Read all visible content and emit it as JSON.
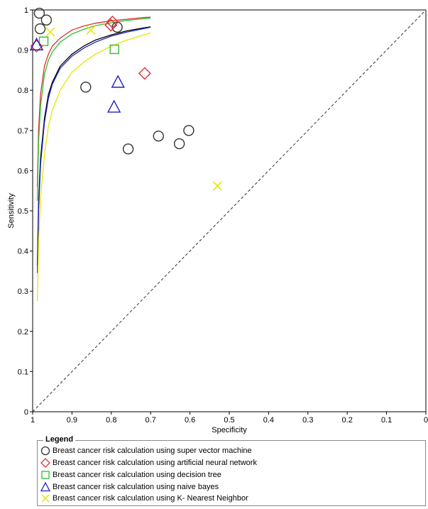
{
  "chart_data": {
    "type": "scatter",
    "xlabel": "Specificity",
    "ylabel": "Sensitivity",
    "xlim": [
      1,
      0
    ],
    "ylim": [
      0,
      1
    ],
    "x_reversed": true,
    "grid": false,
    "diagonal_reference_line": true,
    "x_ticks": [
      "1",
      "0.9",
      "0.8",
      "0.7",
      "0.6",
      "0.5",
      "0.4",
      "0.3",
      "0.2",
      "0.1",
      "0"
    ],
    "y_ticks": [
      "0",
      "0.1",
      "0.2",
      "0.3",
      "0.4",
      "0.5",
      "0.6",
      "0.7",
      "0.8",
      "0.9",
      "1"
    ],
    "legend": {
      "title": "Legend",
      "placement": "bottom",
      "entries": [
        "Breast cancer risk calculation using super vector machine",
        "Breast cancer risk calculation using artificial neural network",
        "Breast cancer risk calculation using decision tree",
        "Breast cancer risk calculation using naive bayes",
        "Breast cancer risk calculation using K- Nearest Neighbor"
      ]
    },
    "series": [
      {
        "name": "Breast cancer risk calculation using super vector machine",
        "marker": "circle",
        "color": "#333333",
        "points": [
          {
            "x": 0.983,
            "y": 0.992
          },
          {
            "x": 0.965,
            "y": 0.975
          },
          {
            "x": 0.981,
            "y": 0.953
          },
          {
            "x": 0.785,
            "y": 0.957
          },
          {
            "x": 0.865,
            "y": 0.808
          },
          {
            "x": 0.68,
            "y": 0.686
          },
          {
            "x": 0.603,
            "y": 0.7
          },
          {
            "x": 0.627,
            "y": 0.667
          },
          {
            "x": 0.757,
            "y": 0.654
          }
        ]
      },
      {
        "name": "Breast cancer risk calculation using artificial neural network",
        "marker": "diamond",
        "color": "#e03030",
        "points": [
          {
            "x": 0.99,
            "y": 0.91
          },
          {
            "x": 0.797,
            "y": 0.97
          },
          {
            "x": 0.801,
            "y": 0.962
          },
          {
            "x": 0.715,
            "y": 0.842
          }
        ]
      },
      {
        "name": "Breast cancer risk calculation using decision tree",
        "marker": "square",
        "color": "#2fbf2f",
        "points": [
          {
            "x": 0.972,
            "y": 0.922
          },
          {
            "x": 0.792,
            "y": 0.902
          }
        ]
      },
      {
        "name": "Breast cancer risk calculation using naive bayes",
        "marker": "triangle",
        "color": "#2020c0",
        "points": [
          {
            "x": 0.99,
            "y": 0.913
          },
          {
            "x": 0.783,
            "y": 0.82
          },
          {
            "x": 0.793,
            "y": 0.758
          }
        ]
      },
      {
        "name": "Breast cancer risk calculation using K- Nearest Neighbor",
        "marker": "cross",
        "color": "#e6e600",
        "points": [
          {
            "x": 0.955,
            "y": 0.945
          },
          {
            "x": 0.852,
            "y": 0.95
          },
          {
            "x": 0.53,
            "y": 0.562
          }
        ]
      }
    ],
    "curves": [
      {
        "color": "#e03030",
        "x": [
          0.988,
          0.985,
          0.98,
          0.97,
          0.96,
          0.95,
          0.93,
          0.9,
          0.87,
          0.84,
          0.8,
          0.76,
          0.72,
          0.7
        ],
        "y": [
          0.56,
          0.7,
          0.79,
          0.86,
          0.89,
          0.91,
          0.93,
          0.95,
          0.96,
          0.967,
          0.973,
          0.977,
          0.981,
          0.982
        ]
      },
      {
        "color": "#2fbf2f",
        "x": [
          0.988,
          0.985,
          0.98,
          0.97,
          0.96,
          0.95,
          0.93,
          0.9,
          0.87,
          0.84,
          0.8,
          0.76,
          0.72,
          0.7
        ],
        "y": [
          0.525,
          0.67,
          0.76,
          0.84,
          0.875,
          0.895,
          0.92,
          0.94,
          0.952,
          0.961,
          0.968,
          0.974,
          0.978,
          0.98
        ]
      },
      {
        "color": "#000000",
        "x": [
          0.988,
          0.985,
          0.98,
          0.97,
          0.96,
          0.95,
          0.93,
          0.9,
          0.87,
          0.84,
          0.8,
          0.76,
          0.72,
          0.7
        ],
        "y": [
          0.365,
          0.52,
          0.63,
          0.73,
          0.79,
          0.82,
          0.86,
          0.89,
          0.91,
          0.925,
          0.938,
          0.948,
          0.955,
          0.958
        ]
      },
      {
        "color": "#2020c0",
        "x": [
          0.988,
          0.985,
          0.98,
          0.97,
          0.96,
          0.95,
          0.93,
          0.9,
          0.87,
          0.84,
          0.8,
          0.76,
          0.72,
          0.7
        ],
        "y": [
          0.345,
          0.5,
          0.615,
          0.72,
          0.78,
          0.815,
          0.855,
          0.885,
          0.905,
          0.92,
          0.935,
          0.945,
          0.953,
          0.957
        ]
      },
      {
        "color": "#e6e600",
        "x": [
          0.988,
          0.985,
          0.98,
          0.97,
          0.96,
          0.95,
          0.93,
          0.9,
          0.87,
          0.84,
          0.8,
          0.76,
          0.72,
          0.7
        ],
        "y": [
          0.275,
          0.42,
          0.53,
          0.64,
          0.71,
          0.75,
          0.8,
          0.845,
          0.87,
          0.89,
          0.91,
          0.925,
          0.937,
          0.943
        ]
      }
    ]
  }
}
